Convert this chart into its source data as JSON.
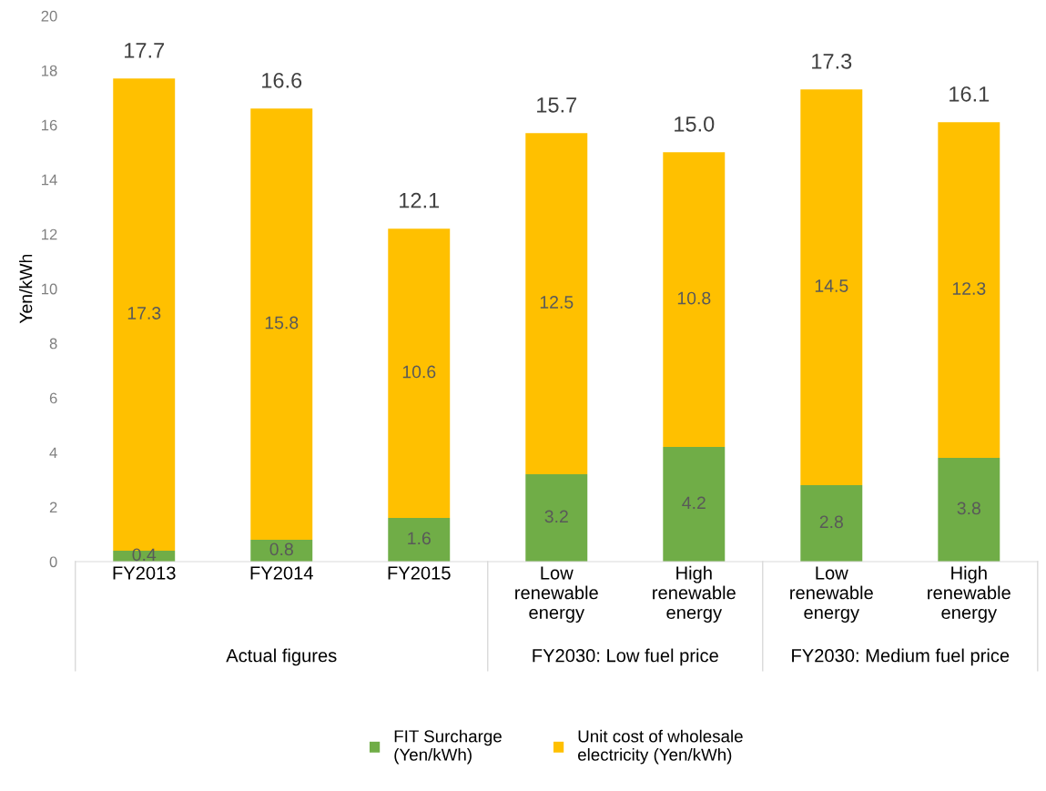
{
  "chart_data": {
    "type": "bar",
    "stacked": true,
    "ylabel": "Yen/kWh",
    "categories": [
      "FY2013",
      "FY2014",
      "FY2015",
      "Low\nrenewable\nenergy",
      "High\nrenewable\nenergy",
      "Low\nrenewable\nenergy",
      "High\nrenewable\nenergy"
    ],
    "series": [
      {
        "name": "FIT Surcharge\n(Yen/kWh)",
        "color": "#70ad47",
        "values": [
          0.4,
          0.8,
          1.6,
          3.2,
          4.2,
          2.8,
          3.8
        ]
      },
      {
        "name": "Unit cost of wholesale\nelectricity (Yen/kWh)",
        "color": "#ffc000",
        "values": [
          17.3,
          15.8,
          10.6,
          12.5,
          10.8,
          14.5,
          12.3
        ]
      }
    ],
    "totals": [
      "17.7",
      "16.6",
      "12.1",
      "15.7",
      "15.0",
      "17.3",
      "16.1"
    ],
    "data_labels": true,
    "ylim": [
      0,
      20
    ],
    "yticks": [
      0,
      2,
      4,
      6,
      8,
      10,
      12,
      14,
      16,
      18,
      20
    ],
    "grid": false,
    "legend": "bottom",
    "annotations": [
      "Actual figures",
      "FY2030: Low fuel price",
      "FY2030: Medium fuel price"
    ]
  }
}
